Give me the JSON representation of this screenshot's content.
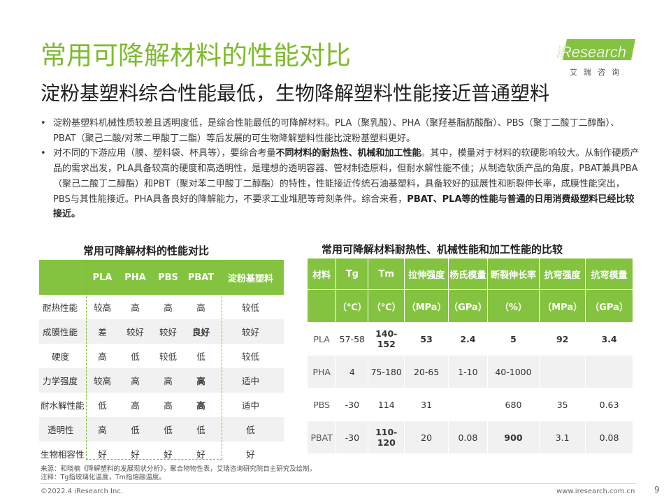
{
  "title": "常用可降解材料的性能对比",
  "subtitle": "淀粉基塑料综合性能最低，生物降解塑料性能接近普通塑料",
  "logo": {
    "brand": "iResearch",
    "tagline": "艾瑞咨询"
  },
  "bullets": [
    {
      "dot": "•",
      "text": "淀粉基塑料机械性质较差且透明度低，是综合性能最低的可降解材料。PLA（聚乳酸）、PHA（聚羟基脂肪酸酯）、PBS（聚丁二酸丁二醇酯）、PBAT（聚己二酸/对苯二甲酸丁二酯）等后发展的可生物降解塑料性能比淀粉基塑料更好。"
    },
    {
      "dot": "•",
      "pre": "对不同的下游应用（膜、塑料袋、杯具等），要综合考量",
      "bold1": "不同材料的耐热性、机械和加工性能",
      "mid": "。其中，模量对于材料的软硬影响较大。从制作硬质产品的需求出发，PLA具备较高的硬度和高透明性，是理想的透明容器、管材制造原料，但耐水解性能不佳；从制造软质产品的角度，PBAT兼具PBA（聚己二酸丁二醇酯）和PBT（聚对苯二甲酸丁二醇酯）的特性，性能接近传统石油基塑料，具备较好的延展性和断裂伸长率，成膜性能突出，PBS与其性能接近。PHA具备良好的降解能力，不要求工业堆肥等苛刻条件。综合来看，",
      "bold2": "PBAT、PLA等的性能与普通的日用消费级塑料已经比较接近。"
    }
  ],
  "table1": {
    "title": "常用可降解材料的性能对比",
    "headers": [
      "",
      "PLA",
      "PHA",
      "PBS",
      "PBAT",
      "淀粉基塑料"
    ],
    "rows": [
      [
        "耐热性能",
        "较高",
        "高",
        "高",
        "高",
        "较低"
      ],
      [
        "成膜性能",
        "差",
        "较好",
        "较好",
        "良好",
        "较好"
      ],
      [
        "硬度",
        "高",
        "低",
        "较低",
        "低",
        "较低"
      ],
      [
        "力学强度",
        "较高",
        "高",
        "高",
        "高",
        "适中"
      ],
      [
        "耐水解性能",
        "低",
        "高",
        "高",
        "高",
        "适中"
      ],
      [
        "透明性",
        "高",
        "低",
        "低",
        "低",
        "低"
      ],
      [
        "生物相容性",
        "好",
        "好",
        "好",
        "好",
        "好"
      ]
    ]
  },
  "table2": {
    "title": "常用可降解材料耐热性、机械性能和加工性能的比较",
    "headers": [
      "材料",
      "Tg",
      "Tm",
      "拉伸强度",
      "杨氏模量",
      "断裂伸长率",
      "抗弯强度",
      "抗弯模量"
    ],
    "units": [
      "",
      "（℃）",
      "（℃）",
      "（MPa）",
      "（GPa）",
      "（%）",
      "（MPa）",
      "（GPa）"
    ],
    "rows": [
      [
        "PLA",
        "57-58",
        "140-152",
        "53",
        "2.4",
        "5",
        "92",
        "3.4"
      ],
      [
        "PHA",
        "4",
        "75-180",
        "20-65",
        "1-10",
        "40-1000",
        "",
        ""
      ],
      [
        "PBS",
        "-30",
        "114",
        "31",
        "",
        "680",
        "35",
        "0.63"
      ],
      [
        "PBAT",
        "-30",
        "110-120",
        "20",
        "0.08",
        "900",
        "3.1",
        "0.08"
      ]
    ]
  },
  "source": {
    "line1": "来源：和晓楠《降解塑料的发展现状分析》，聚合物物性表，艾瑞咨询研究院自主研究及绘制。",
    "line2": "注释：Tg指玻璃化温度，Tm指熔融温度。"
  },
  "footer": {
    "copyright": "©2022.4 iResearch Inc.",
    "site": "www.iresearch.com.cn",
    "page": "9"
  },
  "colors": {
    "accent": "#84c340",
    "title": "#7dbb2c"
  }
}
